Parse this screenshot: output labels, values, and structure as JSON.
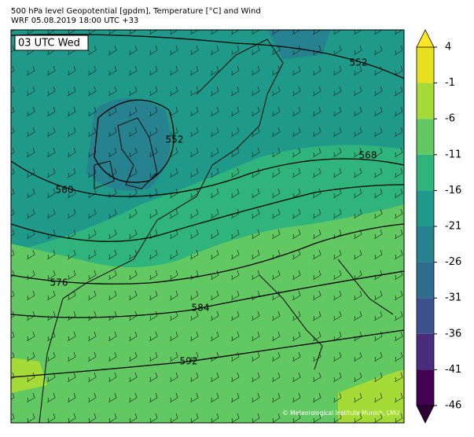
{
  "title_lines": [
    "500 hPa level Geopotential [gpdm], Temperature [°C] and Wind",
    "WRF 05.08.2019 18:00 UTC +33"
  ],
  "time_label": "03 UTC Wed",
  "credit": "© Meteorological Institute Munich, LMU",
  "contour_labels": [
    552,
    552,
    560,
    568,
    576,
    584,
    592
  ],
  "colorbar": {
    "lim": [
      -46,
      4
    ],
    "ticks": [
      4,
      -1,
      -6,
      -11,
      -16,
      -21,
      -26,
      -31,
      -36,
      -41,
      -46
    ],
    "colors": [
      "#e6e11c",
      "#a5db36",
      "#62c962",
      "#2fb47c",
      "#1f9a8a",
      "#26828e",
      "#2e6d8e",
      "#3b518b",
      "#472d7b",
      "#440154"
    ],
    "extend_colors": [
      "#fde725",
      "#2d0036"
    ]
  }
}
